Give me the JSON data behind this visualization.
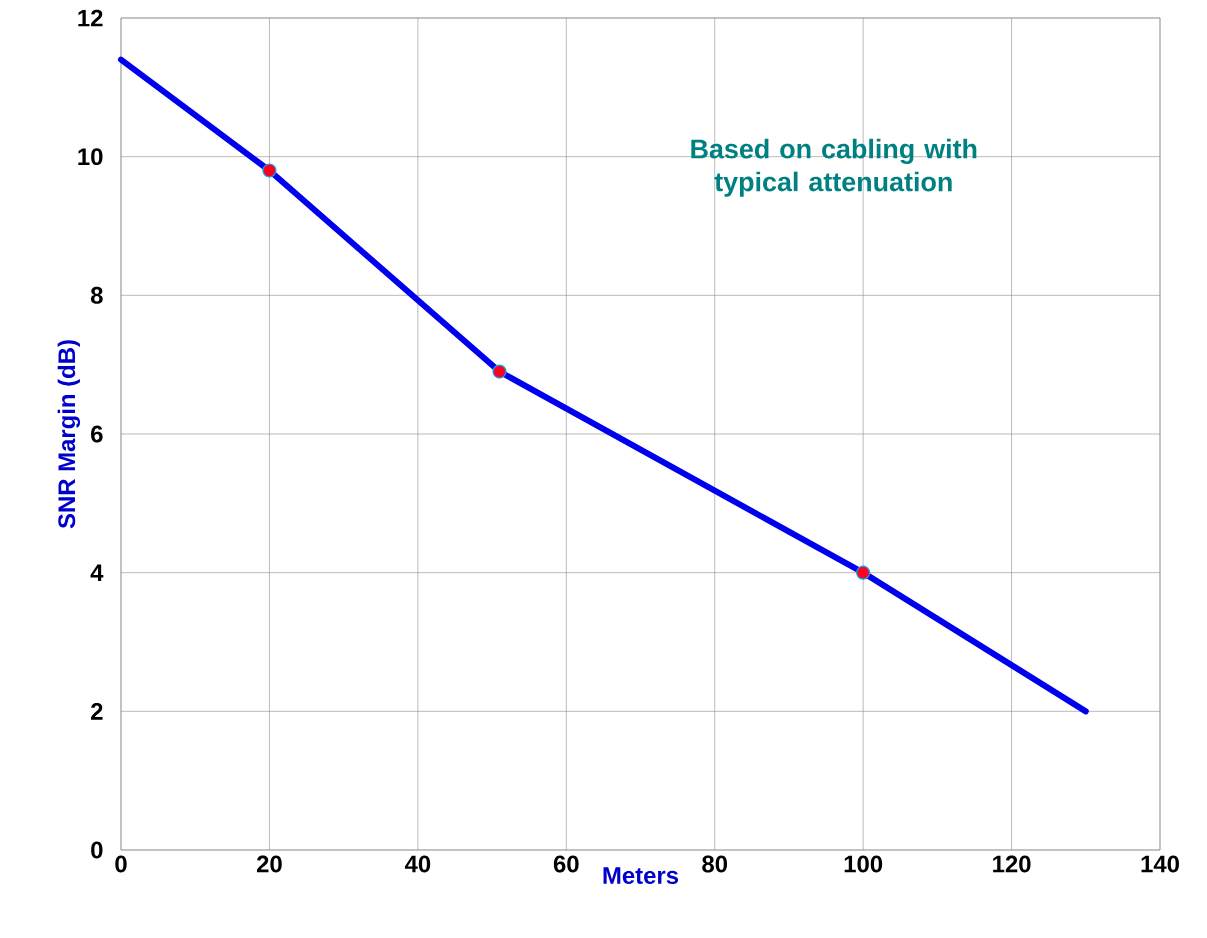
{
  "chart_data": {
    "type": "line",
    "xlabel": "Meters",
    "ylabel": "SNR Margin (dB)",
    "series": [
      {
        "color": "#0000ee",
        "x": [
          0,
          20,
          51,
          100,
          130
        ],
        "values": [
          11.4,
          9.8,
          6.9,
          4.0,
          2.0
        ]
      },
      {
        "type": "scatter",
        "color": "#ff0022",
        "marker": "circle",
        "x": [
          20,
          51,
          100
        ],
        "values": [
          9.8,
          6.9,
          4.0
        ]
      }
    ],
    "xlim": [
      0,
      140
    ],
    "ylim": [
      0,
      12
    ],
    "xticks": [
      0,
      20,
      40,
      60,
      80,
      100,
      120,
      140
    ],
    "yticks": [
      0,
      2,
      4,
      6,
      8,
      10,
      12
    ],
    "grid": true,
    "annotations": [
      "Based on cabling with typical attenuation"
    ]
  }
}
